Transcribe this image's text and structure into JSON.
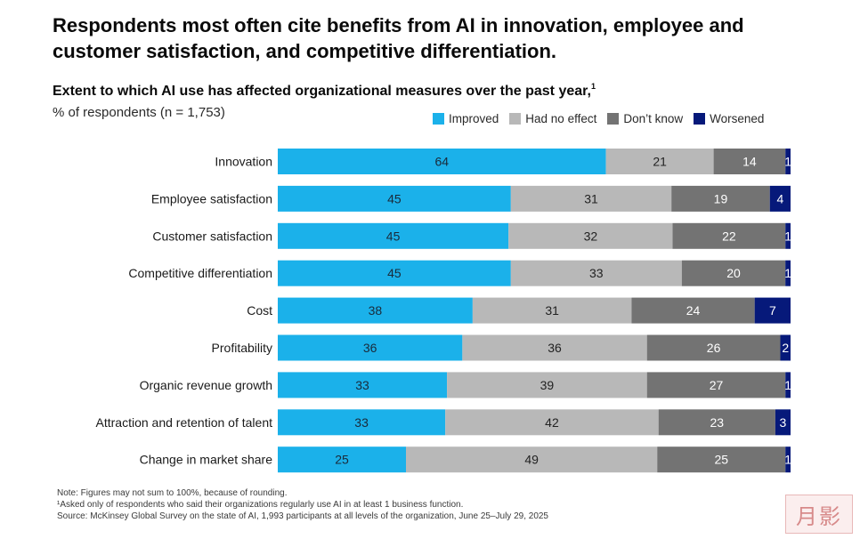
{
  "headline": "Respondents most often cite benefits from AI in innovation, employee and customer satisfaction, and competitive differentiation.",
  "subtitle": "Extent to which AI use has affected organizational measures over the past year,",
  "subtitle_footnote_marker": "1",
  "unit_label": "% of respondents (n = 1,753)",
  "footnotes": [
    "Note: Figures may not sum to 100%, because of rounding.",
    "¹Asked only of respondents who said their organizations regularly use AI in at least 1 business function.",
    "Source: McKinsey Global Survey on the state of AI, 1,993 participants at all levels of the organization, June 25–July 29, 2025"
  ],
  "watermark_text": "月影",
  "chart_data": {
    "type": "bar",
    "orientation": "horizontal",
    "stacked": true,
    "xlim": [
      0,
      100
    ],
    "legend_position": "top-right",
    "grid": false,
    "categories": [
      "Innovation",
      "Employee satisfaction",
      "Customer satisfaction",
      "Competitive differentiation",
      "Cost",
      "Profitability",
      "Organic revenue growth",
      "Attraction and retention of talent",
      "Change in market share"
    ],
    "series": [
      {
        "name": "Improved",
        "color": "#1bb1ea",
        "label_color": "#1a2a3a",
        "values": [
          64,
          45,
          45,
          45,
          38,
          36,
          33,
          33,
          25
        ]
      },
      {
        "name": "Had no effect",
        "color": "#b8b8b8",
        "label_color": "#222222",
        "values": [
          21,
          31,
          32,
          33,
          31,
          36,
          39,
          42,
          49
        ]
      },
      {
        "name": "Don’t know",
        "color": "#737373",
        "label_color": "#ffffff",
        "values": [
          14,
          19,
          22,
          20,
          24,
          26,
          27,
          23,
          25
        ]
      },
      {
        "name": "Worsened",
        "color": "#06197a",
        "label_color": "#ffffff",
        "values": [
          1,
          4,
          1,
          1,
          7,
          2,
          1,
          3,
          1
        ]
      }
    ]
  }
}
